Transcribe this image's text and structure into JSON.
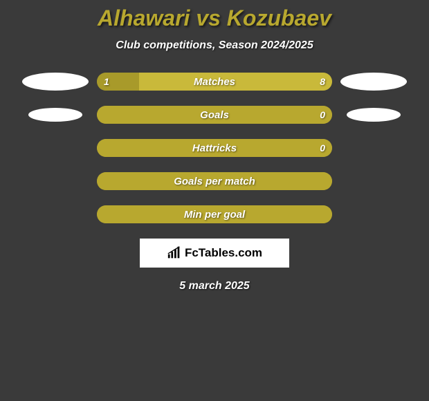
{
  "title": "Alhawari vs Kozubaev",
  "subtitle": "Club competitions, Season 2024/2025",
  "date": "5 march 2025",
  "logo_text": "FcTables.com",
  "colors": {
    "background": "#3a3a3a",
    "accent_title": "#b8a82f",
    "bar_dark": "#a89a2a",
    "bar_light": "#c9b93a",
    "bar_full": "#b8a82f",
    "text": "#ffffff"
  },
  "bars": [
    {
      "label": "Matches",
      "left_value": "1",
      "right_value": "8",
      "left_pct": 18,
      "right_pct": 82,
      "left_color": "#a89a2a",
      "right_color": "#c9b93a",
      "show_left_ellipse": "big",
      "show_right_ellipse": "big"
    },
    {
      "label": "Goals",
      "left_value": "",
      "right_value": "0",
      "left_pct": 100,
      "right_pct": 0,
      "left_color": "#b8a82f",
      "right_color": "#b8a82f",
      "show_left_ellipse": "small",
      "show_right_ellipse": "small"
    },
    {
      "label": "Hattricks",
      "left_value": "",
      "right_value": "0",
      "left_pct": 100,
      "right_pct": 0,
      "left_color": "#b8a82f",
      "right_color": "#b8a82f",
      "show_left_ellipse": "",
      "show_right_ellipse": ""
    },
    {
      "label": "Goals per match",
      "left_value": "",
      "right_value": "",
      "left_pct": 100,
      "right_pct": 0,
      "left_color": "#b8a82f",
      "right_color": "#b8a82f",
      "show_left_ellipse": "",
      "show_right_ellipse": ""
    },
    {
      "label": "Min per goal",
      "left_value": "",
      "right_value": "",
      "left_pct": 100,
      "right_pct": 0,
      "left_color": "#b8a82f",
      "right_color": "#b8a82f",
      "show_left_ellipse": "",
      "show_right_ellipse": ""
    }
  ]
}
